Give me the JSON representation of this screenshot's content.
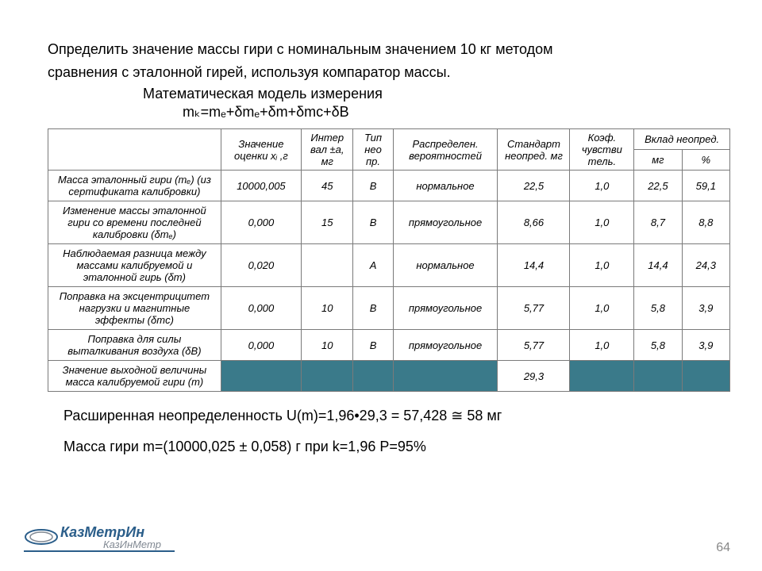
{
  "title_line1": "Определить значение массы гири с номинальным значением 10 кг методом",
  "title_line2": "сравнения с эталонной гирей, используя компаратор массы.",
  "subtitle": "Математическая модель измерения",
  "formula": "mₖ=mₑ+δmₑ+δm+δmс+δB",
  "headers": {
    "h1": "Значение оценки xᵢ ,г",
    "h2": "Интер вал ±а, мг",
    "h3": "Тип нео пр.",
    "h4": "Распределен. вероятностей",
    "h5": "Стандарт неопред. мг",
    "h6": "Коэф. чувстви тель.",
    "h7": "Вклад неопред.",
    "h7a": "мг",
    "h7b": "%"
  },
  "rows": [
    {
      "label": "Масса эталонный гири (mₑ) (из сертификата калибровки)",
      "v1": "10000,005",
      "v2": "45",
      "v3": "B",
      "v4": "нормальное",
      "v5": "22,5",
      "v6": "1,0",
      "v7": "22,5",
      "v8": "59,1"
    },
    {
      "label": "Изменение массы эталонной гири со времени последней калибровки (δmₑ)",
      "v1": "0,000",
      "v2": "15",
      "v3": "B",
      "v4": "прямоугольное",
      "v5": "8,66",
      "v6": "1,0",
      "v7": "8,7",
      "v8": "8,8"
    },
    {
      "label": "Наблюдаемая разница между массами калибруемой и эталонной гирь (δm)",
      "v1": "0,020",
      "v2": "",
      "v3": "A",
      "v4": "нормальное",
      "v5": "14,4",
      "v6": "1,0",
      "v7": "14,4",
      "v8": "24,3"
    },
    {
      "label": "Поправка на эксцентрицитет нагрузки и  магнитные эффекты (δmс)",
      "v1": "0,000",
      "v2": "10",
      "v3": "B",
      "v4": "прямоугольное",
      "v5": "5,77",
      "v6": "1,0",
      "v7": "5,8",
      "v8": "3,9"
    },
    {
      "label": "Поправка для силы выталкивания воздуха (δB)",
      "v1": "0,000",
      "v2": "10",
      "v3": "B",
      "v4": "прямоугольное",
      "v5": "5,77",
      "v6": "1,0",
      "v7": "5,8",
      "v8": "3,9"
    },
    {
      "label": "Значение выходной величины масса калибруемой гири (m)",
      "v1": "",
      "v2": "",
      "v3": "",
      "v4": "",
      "v5": "29,3",
      "v6": "",
      "v7": "",
      "v8": "",
      "filled": true
    }
  ],
  "below1": "Расширенная неопределенность U(m)=1,96•29,3 =  57,428 ≅ 58 мг",
  "below2": "Масса гири m=(10000,025 ± 0,058) г   при  k=1,96    P=95%",
  "page_number": "64",
  "logo": {
    "text1": "КазМетрИн",
    "text2": "КазИнМетр"
  },
  "colors": {
    "filled_cell": "#3a7a8a",
    "border": "#7a7a7a",
    "logo_blue": "#2b5e8a",
    "logo_grey": "#808892"
  }
}
